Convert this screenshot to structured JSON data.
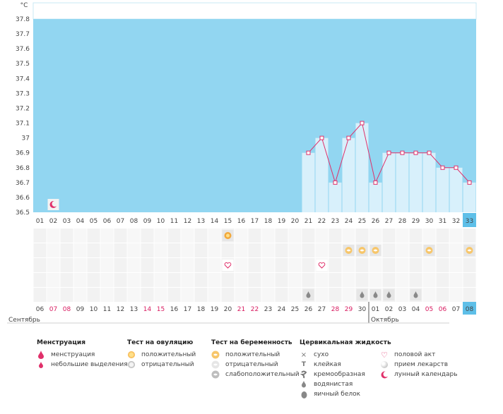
{
  "chart_data": {
    "type": "line",
    "unit_label": "°C",
    "y_ticks": [
      "37.8",
      "37.7",
      "37.6",
      "37.5",
      "37.4",
      "37.3",
      "37.2",
      "37.1",
      "37",
      "36.9",
      "36.8",
      "36.7",
      "36.6",
      "36.5"
    ],
    "ylim": [
      36.5,
      37.8
    ],
    "cycle_days": [
      "01",
      "02",
      "03",
      "04",
      "05",
      "06",
      "07",
      "08",
      "09",
      "10",
      "11",
      "12",
      "13",
      "14",
      "15",
      "16",
      "17",
      "18",
      "19",
      "20",
      "21",
      "22",
      "23",
      "24",
      "25",
      "26",
      "27",
      "28",
      "29",
      "30",
      "31",
      "32",
      "33"
    ],
    "current_day": "33",
    "dates": [
      "06",
      "07",
      "08",
      "09",
      "10",
      "11",
      "12",
      "13",
      "14",
      "15",
      "16",
      "17",
      "18",
      "19",
      "20",
      "21",
      "22",
      "23",
      "24",
      "25",
      "26",
      "27",
      "28",
      "29",
      "30",
      "01",
      "02",
      "03",
      "04",
      "05",
      "06",
      "07",
      "08"
    ],
    "date_red": [
      false,
      true,
      true,
      false,
      false,
      false,
      false,
      false,
      true,
      true,
      false,
      false,
      false,
      false,
      false,
      true,
      true,
      false,
      false,
      false,
      false,
      false,
      true,
      true,
      false,
      false,
      false,
      false,
      false,
      true,
      true,
      false,
      false
    ],
    "months": [
      "Сентябрь",
      "Октябрь"
    ],
    "temperature_points": [
      {
        "day": 21,
        "value": 36.9
      },
      {
        "day": 22,
        "value": 37.0
      },
      {
        "day": 23,
        "value": 36.7
      },
      {
        "day": 24,
        "value": 37.0
      },
      {
        "day": 25,
        "value": 37.1
      },
      {
        "day": 26,
        "value": 36.7
      },
      {
        "day": 27,
        "value": 36.9
      },
      {
        "day": 28,
        "value": 36.9
      },
      {
        "day": 29,
        "value": 36.9
      },
      {
        "day": 30,
        "value": 36.9
      },
      {
        "day": 31,
        "value": 36.8
      },
      {
        "day": 32,
        "value": 36.8
      },
      {
        "day": 33,
        "value": 36.7
      }
    ],
    "moon_day": 2,
    "markers": {
      "ovulation_positive": [
        15
      ],
      "pregnancy_positive": [
        24,
        25,
        26,
        30,
        33
      ],
      "intercourse": [
        15,
        22
      ],
      "discharge_watery": [
        21,
        25,
        26,
        27,
        29
      ]
    }
  },
  "legend": {
    "menstruation": {
      "title": "Менструация",
      "items": [
        "менструация",
        "небольшие выделения"
      ]
    },
    "ovulation": {
      "title": "Тест на овуляцию",
      "items": [
        "положительный",
        "отрицательный"
      ]
    },
    "pregnancy": {
      "title": "Тест на беременность",
      "items": [
        "положительный",
        "отрицательный",
        "слабоположительный"
      ]
    },
    "cervical": {
      "title": "Цервикальная жидкость",
      "items": [
        "сухо",
        "клейкая",
        "кремообразная",
        "водянистая",
        "яичный белок"
      ]
    },
    "other": {
      "items": [
        "половой акт",
        "прием лекарств",
        "лунный календарь"
      ]
    }
  },
  "colors": {
    "sky": "#92d6f1",
    "bar_fill": "#d8f0fb",
    "line": "#e0306a",
    "selected_day": "#5ebfe8",
    "red_text": "#d81b60"
  }
}
